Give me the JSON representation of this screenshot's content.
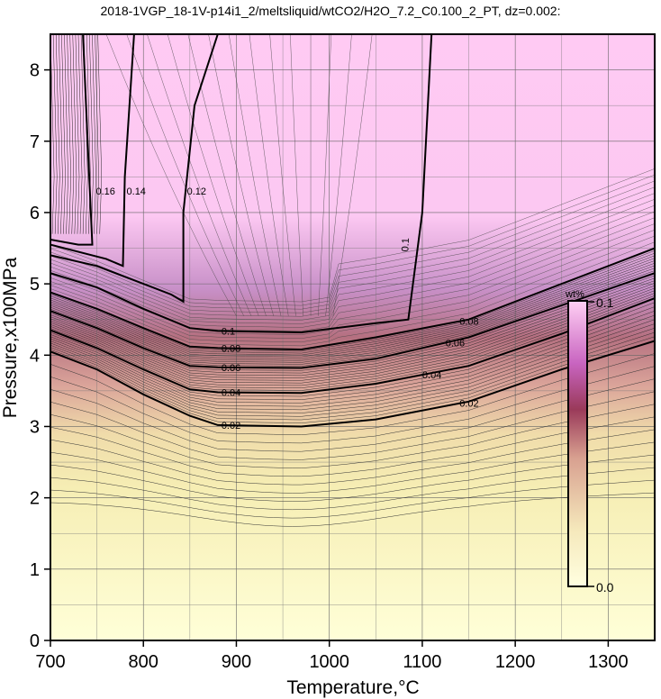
{
  "chart_data": {
    "type": "contour",
    "title": "2018-1VGP_18-1V-p14i1_2/meltsliquid/wtCO2/H2O_7.2_C0.100_2_PT, dz=0.002:",
    "xlabel": "Temperature,°C",
    "ylabel": "Pressure,x100MPa",
    "xlim": [
      700,
      1350
    ],
    "ylim": [
      0,
      8.5
    ],
    "x_ticks": [
      700,
      800,
      900,
      1000,
      1100,
      1200,
      1300
    ],
    "y_ticks": [
      0,
      1,
      2,
      3,
      4,
      5,
      6,
      7,
      8
    ],
    "grid": true,
    "contour_interval": 0.002,
    "colorbar": {
      "unit": "wt%",
      "min_label": "0.0",
      "max_label": "0.1",
      "min": 0.0,
      "max": 0.1,
      "colors": [
        "#ffffe0",
        "#f5e8bb",
        "#c98a80",
        "#8a2050",
        "#c864c0",
        "#ffd0f4"
      ]
    },
    "labeled_contours": [
      {
        "level": 0.02,
        "label": "0.02",
        "points": [
          [
            700,
            4.05
          ],
          [
            750,
            3.8
          ],
          [
            800,
            3.45
          ],
          [
            850,
            3.15
          ],
          [
            880,
            3.02
          ],
          [
            970,
            3.0
          ],
          [
            1050,
            3.1
          ],
          [
            1150,
            3.35
          ],
          [
            1250,
            3.8
          ],
          [
            1350,
            4.2
          ]
        ]
      },
      {
        "level": 0.04,
        "label": "0.04",
        "points": [
          [
            700,
            4.35
          ],
          [
            750,
            4.1
          ],
          [
            800,
            3.8
          ],
          [
            850,
            3.52
          ],
          [
            880,
            3.48
          ],
          [
            970,
            3.47
          ],
          [
            1050,
            3.6
          ],
          [
            1150,
            3.85
          ],
          [
            1250,
            4.3
          ],
          [
            1350,
            4.8
          ]
        ]
      },
      {
        "level": 0.06,
        "label": "0.06",
        "points": [
          [
            700,
            4.62
          ],
          [
            750,
            4.38
          ],
          [
            800,
            4.1
          ],
          [
            850,
            3.85
          ],
          [
            880,
            3.83
          ],
          [
            970,
            3.82
          ],
          [
            1050,
            3.95
          ],
          [
            1150,
            4.25
          ],
          [
            1250,
            4.7
          ],
          [
            1350,
            5.15
          ]
        ]
      },
      {
        "level": 0.08,
        "label": "0.08",
        "points": [
          [
            700,
            4.88
          ],
          [
            750,
            4.65
          ],
          [
            800,
            4.38
          ],
          [
            850,
            4.12
          ],
          [
            880,
            4.1
          ],
          [
            970,
            4.08
          ],
          [
            1050,
            4.25
          ],
          [
            1150,
            4.5
          ],
          [
            1250,
            5.0
          ],
          [
            1350,
            5.5
          ]
        ]
      },
      {
        "level": 0.1,
        "label": "0.1",
        "points": [
          [
            700,
            5.15
          ],
          [
            750,
            4.95
          ],
          [
            800,
            4.65
          ],
          [
            850,
            4.38
          ],
          [
            880,
            4.34
          ],
          [
            970,
            4.32
          ],
          [
            1050,
            4.45
          ],
          [
            1085,
            4.5
          ],
          [
            1100,
            6.0
          ],
          [
            1110,
            8.5
          ]
        ]
      },
      {
        "level": 0.12,
        "label": "0.12",
        "points": [
          [
            700,
            5.4
          ],
          [
            750,
            5.25
          ],
          [
            800,
            5.0
          ],
          [
            830,
            4.85
          ],
          [
            843,
            4.75
          ],
          [
            843,
            6.0
          ],
          [
            855,
            7.5
          ],
          [
            880,
            8.5
          ]
        ]
      },
      {
        "level": 0.14,
        "label": "0.14",
        "points": [
          [
            700,
            5.55
          ],
          [
            760,
            5.35
          ],
          [
            778,
            5.25
          ],
          [
            780,
            6.5
          ],
          [
            790,
            8.5
          ]
        ]
      },
      {
        "level": 0.16,
        "label": "0.16",
        "points": [
          [
            700,
            5.62
          ],
          [
            730,
            5.55
          ],
          [
            745,
            5.55
          ],
          [
            740,
            7.0
          ],
          [
            735,
            8.5
          ]
        ]
      }
    ],
    "annotations": [
      "0.1"
    ]
  }
}
